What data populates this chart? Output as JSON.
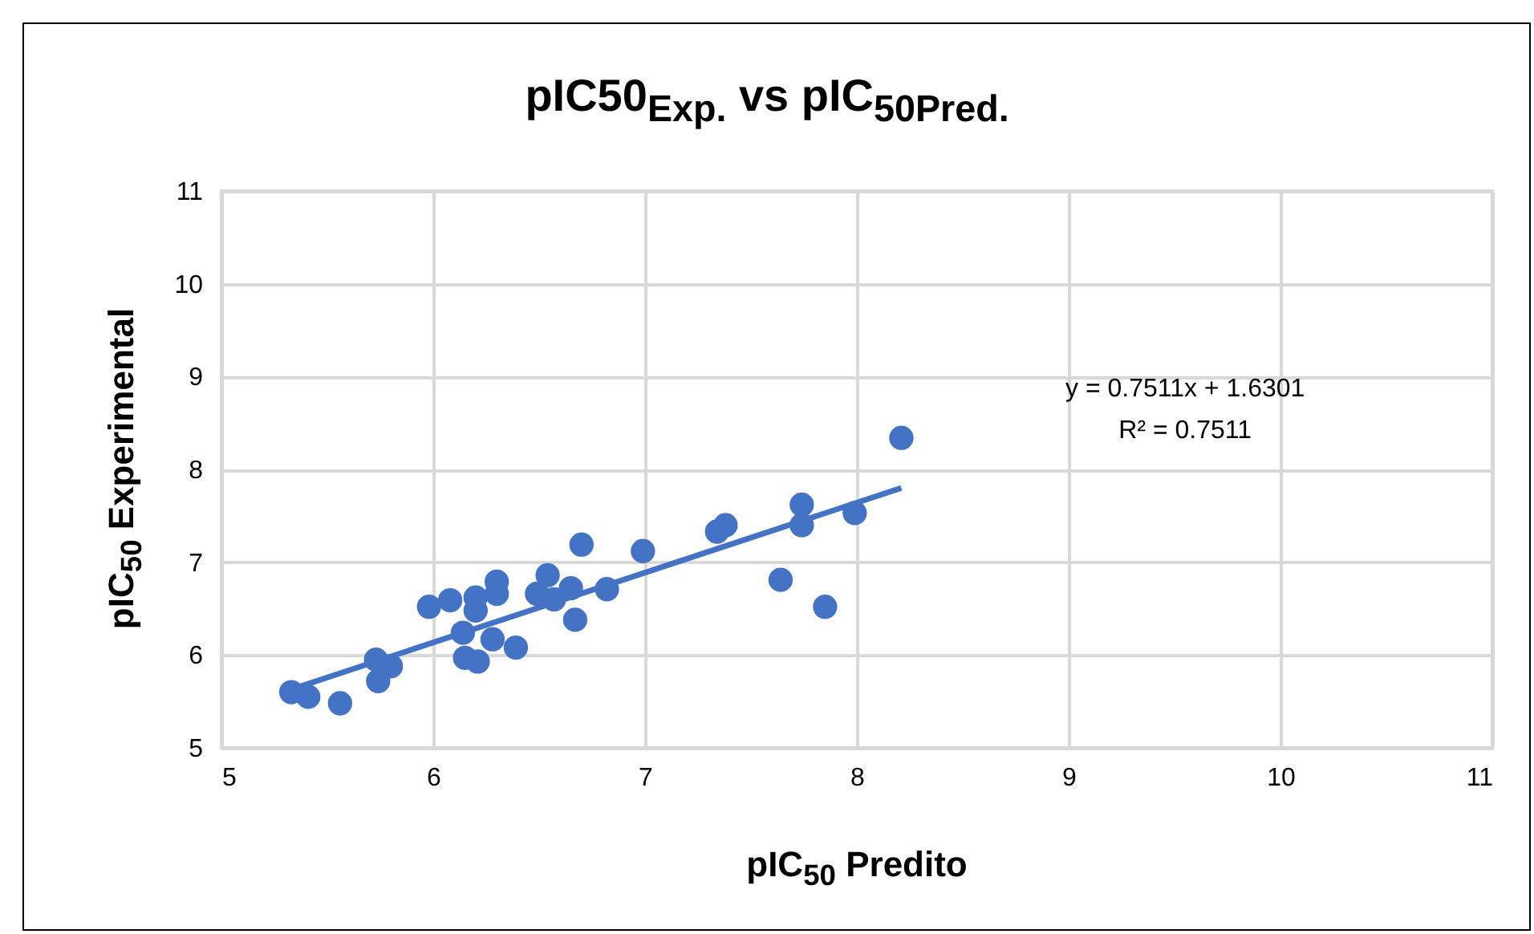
{
  "chart_data": {
    "type": "scatter",
    "title": "pIC50$_{Exp.}$ vs pIC$_{50Pred.}$",
    "xlabel": "pIC$_{50}$ Predito",
    "ylabel": "pIC$_{50}$ Experimental",
    "xlim": [
      5,
      11
    ],
    "xticks": [
      5,
      6,
      7,
      8,
      9,
      10,
      11
    ],
    "ylim": [
      5,
      11
    ],
    "yticks": [
      5,
      6,
      7,
      8,
      9,
      10,
      11
    ],
    "grid": true,
    "annotations": [
      "y = 0.7511x + 1.6301",
      "R² = 0.7511"
    ],
    "series": [
      {
        "marker": "circle",
        "color": "#4472c4",
        "x": [
          5.33,
          5.41,
          5.56,
          5.73,
          5.74,
          5.8,
          5.98,
          6.08,
          6.2,
          6.2,
          6.3,
          6.3,
          6.14,
          6.15,
          6.21,
          6.28,
          6.39,
          6.54,
          6.49,
          6.57,
          6.65,
          6.67,
          6.82,
          6.7,
          6.99,
          7.34,
          7.38,
          7.74,
          7.74,
          7.64,
          7.85,
          7.99,
          8.21
        ],
        "values": [
          5.6,
          5.55,
          5.48,
          5.95,
          5.72,
          5.88,
          6.52,
          6.59,
          6.48,
          6.62,
          6.79,
          6.66,
          6.24,
          5.97,
          5.93,
          6.17,
          6.08,
          6.86,
          6.66,
          6.6,
          6.72,
          6.38,
          6.71,
          7.19,
          7.12,
          7.33,
          7.4,
          7.62,
          7.4,
          6.81,
          6.52,
          7.53,
          8.34
        ]
      },
      {
        "type": "line",
        "marker": "none",
        "color": "#4472c4",
        "x": [
          5.33,
          8.21
        ],
        "values": [
          5.63,
          7.8
        ]
      }
    ]
  }
}
